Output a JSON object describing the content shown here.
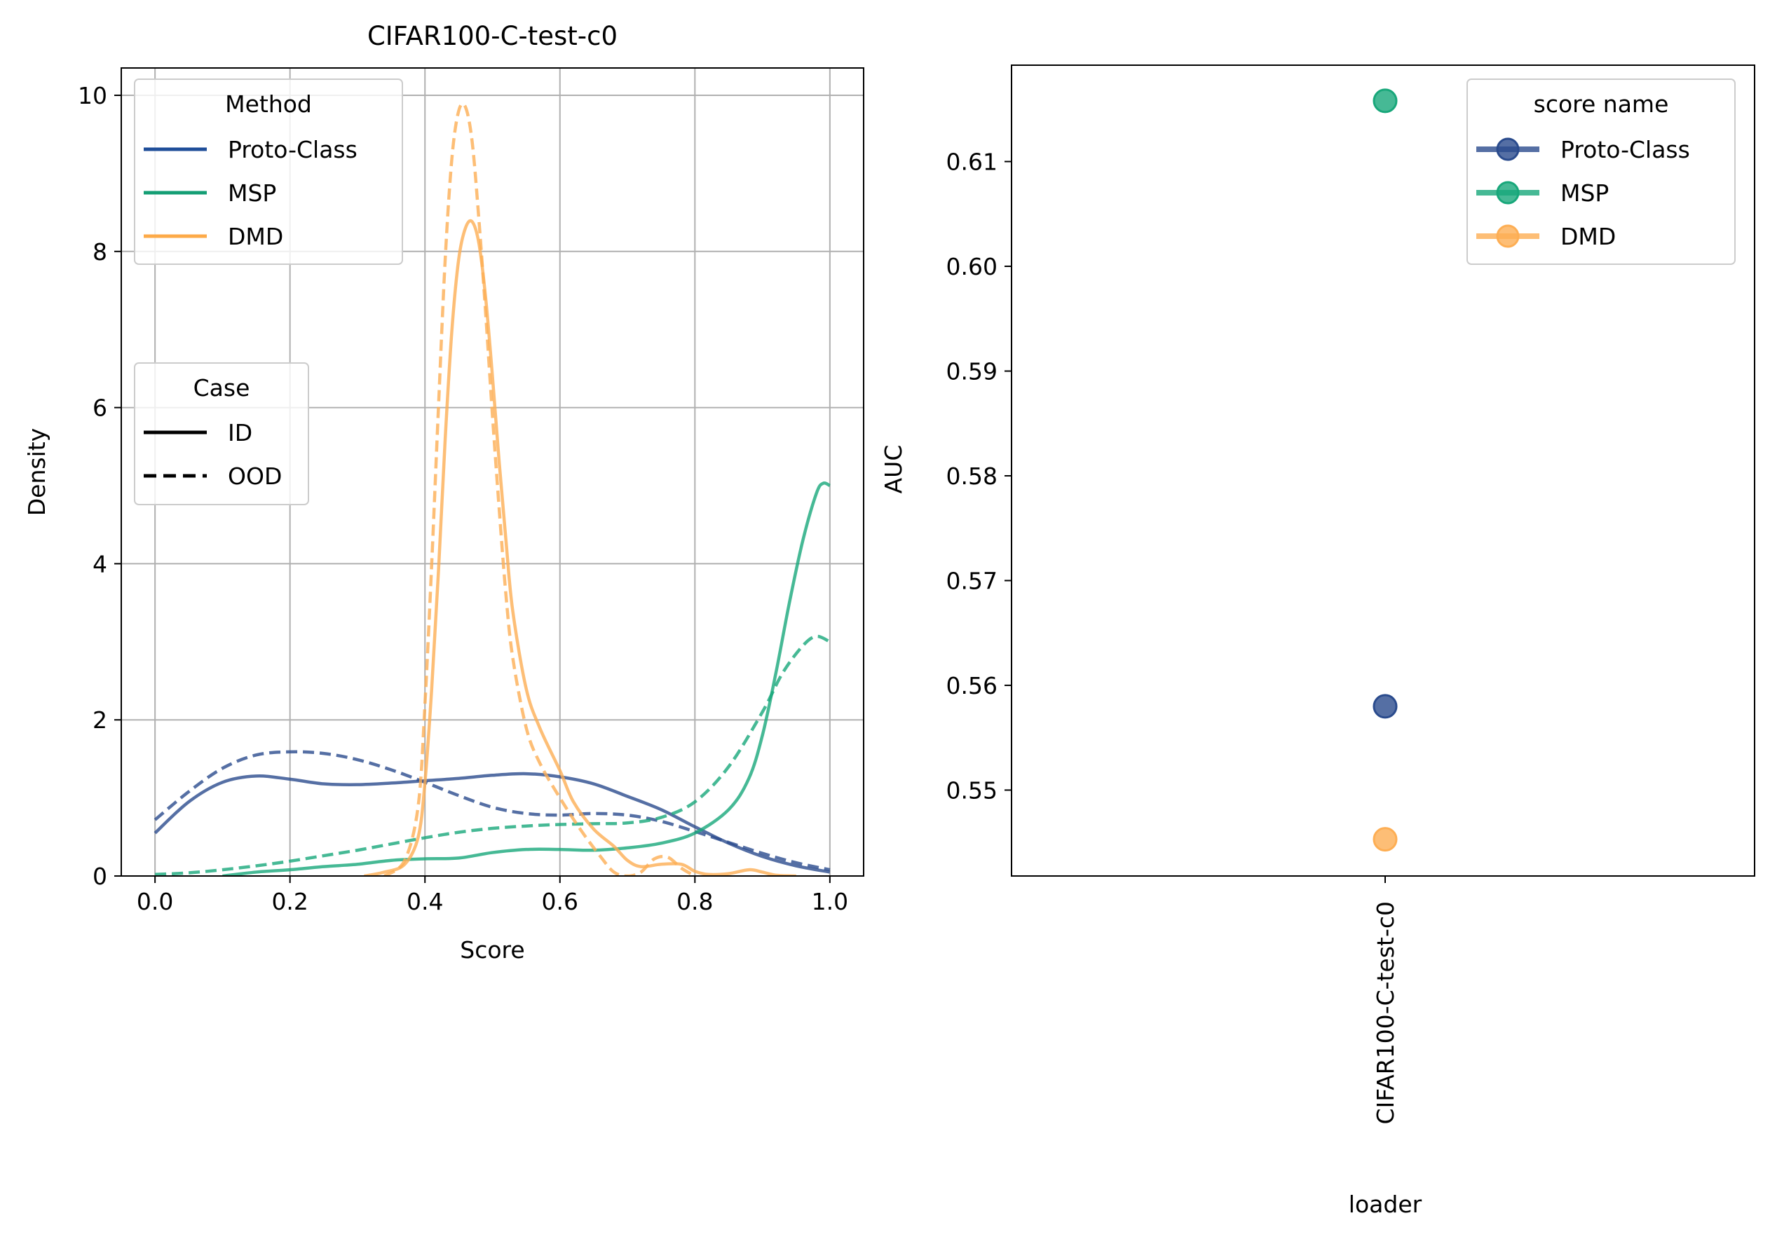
{
  "colors": {
    "proto": "#2a4b8d",
    "msp": "#18a77a",
    "dmd": "#fdae54",
    "grid": "#b0b0b0",
    "legend_line_proto": "#1f4e99",
    "legend_line_msp": "#149e74",
    "legend_line_dmd": "#fdaa48"
  },
  "chart_data": [
    {
      "type": "line",
      "title": "CIFAR100-C-test-c0",
      "xlabel": "Score",
      "ylabel": "Density",
      "xlim": [
        -0.05,
        1.05
      ],
      "ylim": [
        0,
        10.35
      ],
      "xticks": [
        0.0,
        0.2,
        0.4,
        0.6,
        0.8,
        1.0
      ],
      "xtick_labels": [
        "0.0",
        "0.2",
        "0.4",
        "0.6",
        "0.8",
        "1.0"
      ],
      "yticks": [
        0,
        2,
        4,
        6,
        8,
        10
      ],
      "ytick_labels": [
        "0",
        "2",
        "4",
        "6",
        "8",
        "10"
      ],
      "grid": true,
      "legends": [
        {
          "title": "Method",
          "placement": "top-left",
          "entries": [
            {
              "label": "Proto-Class",
              "color": "proto"
            },
            {
              "label": "MSP",
              "color": "msp"
            },
            {
              "label": "DMD",
              "color": "dmd"
            }
          ]
        },
        {
          "title": "Case",
          "placement": "center-left",
          "entries": [
            {
              "label": "ID",
              "dash": "solid"
            },
            {
              "label": "OOD",
              "dash": "dashed"
            }
          ]
        }
      ],
      "series": [
        {
          "method": "Proto-Class",
          "case": "ID",
          "color": "proto",
          "dash": "solid",
          "x": [
            0.0,
            0.05,
            0.1,
            0.15,
            0.2,
            0.25,
            0.3,
            0.35,
            0.4,
            0.45,
            0.5,
            0.55,
            0.6,
            0.65,
            0.7,
            0.75,
            0.8,
            0.85,
            0.9,
            0.95,
            1.0
          ],
          "y": [
            0.55,
            0.95,
            1.2,
            1.28,
            1.24,
            1.18,
            1.17,
            1.19,
            1.22,
            1.25,
            1.29,
            1.31,
            1.27,
            1.18,
            1.02,
            0.85,
            0.63,
            0.42,
            0.25,
            0.13,
            0.05
          ]
        },
        {
          "method": "Proto-Class",
          "case": "OOD",
          "color": "proto",
          "dash": "dashed",
          "x": [
            0.0,
            0.05,
            0.1,
            0.15,
            0.2,
            0.25,
            0.3,
            0.35,
            0.4,
            0.45,
            0.5,
            0.55,
            0.6,
            0.65,
            0.7,
            0.75,
            0.8,
            0.85,
            0.9,
            0.95,
            1.0
          ],
          "y": [
            0.72,
            1.08,
            1.38,
            1.55,
            1.59,
            1.57,
            1.49,
            1.36,
            1.2,
            1.03,
            0.88,
            0.8,
            0.78,
            0.8,
            0.78,
            0.7,
            0.57,
            0.43,
            0.29,
            0.17,
            0.08
          ]
        },
        {
          "method": "MSP",
          "case": "ID",
          "color": "msp",
          "dash": "solid",
          "x": [
            0.1,
            0.15,
            0.2,
            0.25,
            0.3,
            0.35,
            0.4,
            0.45,
            0.5,
            0.55,
            0.6,
            0.65,
            0.7,
            0.75,
            0.8,
            0.85,
            0.88,
            0.9,
            0.92,
            0.94,
            0.96,
            0.98,
            0.99,
            1.0
          ],
          "y": [
            0.0,
            0.05,
            0.08,
            0.12,
            0.15,
            0.2,
            0.22,
            0.23,
            0.3,
            0.34,
            0.34,
            0.33,
            0.36,
            0.42,
            0.55,
            0.85,
            1.25,
            1.8,
            2.6,
            3.5,
            4.3,
            4.9,
            5.03,
            5.0
          ]
        },
        {
          "method": "MSP",
          "case": "OOD",
          "color": "msp",
          "dash": "dashed",
          "x": [
            0.0,
            0.05,
            0.1,
            0.15,
            0.2,
            0.25,
            0.3,
            0.35,
            0.4,
            0.45,
            0.5,
            0.55,
            0.6,
            0.65,
            0.7,
            0.75,
            0.8,
            0.85,
            0.9,
            0.93,
            0.96,
            0.98,
            1.0
          ],
          "y": [
            0.02,
            0.04,
            0.08,
            0.13,
            0.19,
            0.26,
            0.33,
            0.41,
            0.49,
            0.56,
            0.61,
            0.64,
            0.66,
            0.67,
            0.68,
            0.75,
            0.95,
            1.4,
            2.1,
            2.6,
            2.95,
            3.07,
            3.0
          ]
        },
        {
          "method": "DMD",
          "case": "ID",
          "color": "dmd",
          "dash": "solid",
          "x": [
            0.31,
            0.34,
            0.37,
            0.39,
            0.4,
            0.41,
            0.42,
            0.43,
            0.44,
            0.45,
            0.46,
            0.47,
            0.48,
            0.49,
            0.5,
            0.51,
            0.52,
            0.53,
            0.55,
            0.57,
            0.6,
            0.62,
            0.65,
            0.68,
            0.7,
            0.72,
            0.75,
            0.78,
            0.8,
            0.82,
            0.85,
            0.88,
            0.9,
            0.92,
            0.95
          ],
          "y": [
            0.0,
            0.05,
            0.15,
            0.5,
            1.2,
            2.4,
            3.9,
            5.6,
            7.0,
            7.9,
            8.3,
            8.38,
            8.1,
            7.4,
            6.4,
            5.3,
            4.3,
            3.4,
            2.4,
            1.9,
            1.35,
            0.95,
            0.6,
            0.38,
            0.2,
            0.12,
            0.15,
            0.15,
            0.06,
            0.02,
            0.03,
            0.08,
            0.05,
            0.01,
            0.0
          ]
        },
        {
          "method": "DMD",
          "case": "OOD",
          "color": "dmd",
          "dash": "dashed",
          "x": [
            0.34,
            0.37,
            0.39,
            0.4,
            0.41,
            0.42,
            0.43,
            0.44,
            0.45,
            0.46,
            0.47,
            0.48,
            0.49,
            0.5,
            0.51,
            0.52,
            0.53,
            0.55,
            0.57,
            0.6,
            0.63,
            0.66,
            0.68,
            0.7,
            0.72,
            0.74,
            0.76,
            0.78,
            0.8
          ],
          "y": [
            0.0,
            0.2,
            0.9,
            2.2,
            4.0,
            6.0,
            7.9,
            9.2,
            9.8,
            9.85,
            9.4,
            8.4,
            7.2,
            5.9,
            4.7,
            3.6,
            2.8,
            1.9,
            1.45,
            1.0,
            0.6,
            0.25,
            0.05,
            0.0,
            0.05,
            0.22,
            0.24,
            0.1,
            0.0
          ]
        }
      ]
    },
    {
      "type": "scatter",
      "xlabel": "loader",
      "ylabel": "AUC",
      "categories": [
        "CIFAR100-C-test-c0"
      ],
      "ylim": [
        0.5418,
        0.6192
      ],
      "yticks": [
        0.55,
        0.56,
        0.57,
        0.58,
        0.59,
        0.6,
        0.61
      ],
      "ytick_labels": [
        "0.55",
        "0.56",
        "0.57",
        "0.58",
        "0.59",
        "0.60",
        "0.61"
      ],
      "grid": false,
      "legend": {
        "title": "score name",
        "placement": "top-right",
        "entries": [
          {
            "label": "Proto-Class",
            "color": "proto"
          },
          {
            "label": "MSP",
            "color": "msp"
          },
          {
            "label": "DMD",
            "color": "dmd"
          }
        ]
      },
      "series": [
        {
          "name": "Proto-Class",
          "color": "proto",
          "values": [
            0.558
          ]
        },
        {
          "name": "MSP",
          "color": "msp",
          "values": [
            0.6158
          ]
        },
        {
          "name": "DMD",
          "color": "dmd",
          "values": [
            0.5453
          ]
        }
      ]
    }
  ]
}
